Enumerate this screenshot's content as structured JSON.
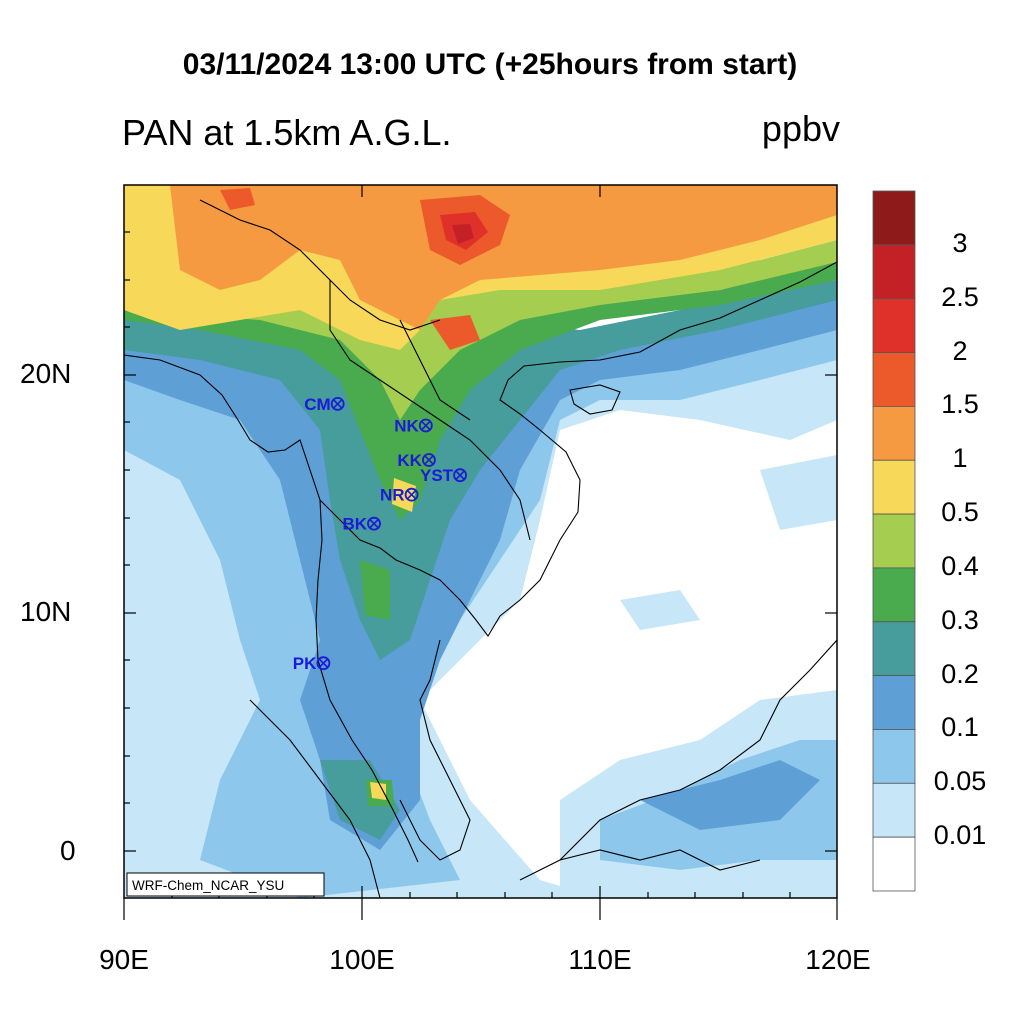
{
  "title": "03/11/2024 13:00 UTC (+25hours from start)",
  "subtitle": "PAN at 1.5km A.G.L.",
  "units": "ppbv",
  "map": {
    "lat_labels": [
      "20N",
      "10N",
      "0"
    ],
    "lon_labels": [
      "90E",
      "100E",
      "110E",
      "120E"
    ],
    "watermark": "WRF-Chem_NCAR_YSU"
  },
  "stations": [
    {
      "code": "CM",
      "lon": 98.99,
      "lat": 18.79
    },
    {
      "code": "NK",
      "lon": 102.7,
      "lat": 17.88
    },
    {
      "code": "KK",
      "lon": 102.83,
      "lat": 16.43
    },
    {
      "code": "YST",
      "lon": 104.14,
      "lat": 15.79
    },
    {
      "code": "NR",
      "lon": 102.1,
      "lat": 14.97
    },
    {
      "code": "BK",
      "lon": 100.52,
      "lat": 13.75
    },
    {
      "code": "PK",
      "lon": 98.39,
      "lat": 7.88
    }
  ],
  "colorbar": {
    "levels": [
      "3",
      "2.5",
      "2",
      "1.5",
      "1",
      "0.5",
      "0.4",
      "0.3",
      "0.2",
      "0.1",
      "0.05",
      "0.01"
    ],
    "colors": [
      "#8e1a1a",
      "#c42126",
      "#e0302a",
      "#ec5a2b",
      "#f59a40",
      "#f7d858",
      "#a5cd4f",
      "#4aaa4e",
      "#479c9c",
      "#5e9fd6",
      "#8dc8ec",
      "#c7e6f7",
      "#ffffff"
    ]
  }
}
